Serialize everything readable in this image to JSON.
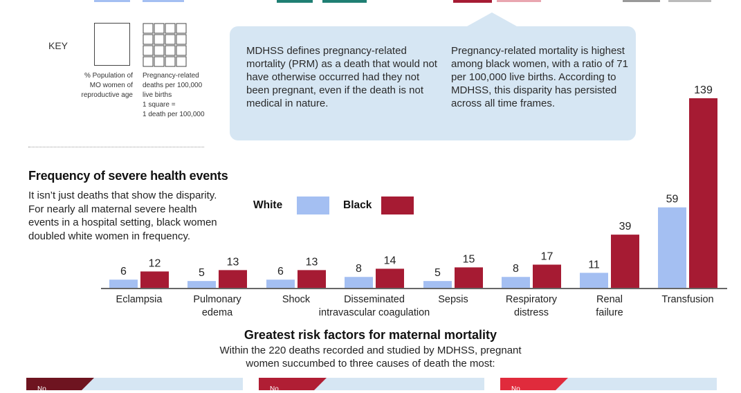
{
  "key": {
    "label": "KEY",
    "population_caption": "% Population of MO women of reproductive age",
    "prm_caption_line1": "Pregnancy-related deaths per 100,000",
    "prm_caption_line2": "live births",
    "prm_caption_line3": "1 square =",
    "prm_caption_line4": "1 death per 100,000"
  },
  "callout": {
    "left_text": "MDHSS defines pregnancy-related mortality (PRM) as a death that would not have otherwise occurred had they not been pregnant, even if the death is not medical in nature.",
    "right_text": "Pregnancy-related mortality is highest among black women, with a ratio of 71 per 100,000 live births. According to MDHSS, this disparity has persisted across all time frames."
  },
  "frequency": {
    "title": "Frequency of severe health events",
    "body": "It isn’t just deaths that show the disparity. For nearly all maternal severe health events in a hospital setting, black women doubled white women in frequency."
  },
  "chart_data": {
    "type": "bar",
    "title": "Frequency of severe health events",
    "categories": [
      [
        "Eclampsia"
      ],
      [
        "Pulmonary",
        "edema"
      ],
      [
        "Shock"
      ],
      [
        "Disseminated",
        "intravascular coagulation"
      ],
      [
        "Sepsis"
      ],
      [
        "Respiratory",
        "distress"
      ],
      [
        "Renal",
        "failure"
      ],
      [
        "Transfusion"
      ]
    ],
    "series": [
      {
        "name": "White",
        "color": "#a4bff2",
        "values": [
          6,
          5,
          6,
          8,
          5,
          8,
          11,
          59
        ]
      },
      {
        "name": "Black",
        "color": "#a61b33",
        "values": [
          12,
          13,
          13,
          14,
          15,
          17,
          39,
          139
        ]
      }
    ],
    "ylim": [
      0,
      139
    ],
    "legend_placement": "top-center",
    "grid": false
  },
  "risk": {
    "title": "Greatest risk factors for maternal mortality",
    "subtitle": "Within the 220 deaths recorded and studied by MDHSS, pregnant women succumbed to three causes of death the most:",
    "bands": [
      {
        "label": "No.",
        "color": "#6e1420"
      },
      {
        "label": "No.",
        "color": "#b01e34"
      },
      {
        "label": "No.",
        "color": "#e02b3c"
      }
    ]
  },
  "colors": {
    "callout_bg": "#d6e6f3",
    "white_bar": "#a4bff2",
    "black_bar": "#a61b33"
  }
}
